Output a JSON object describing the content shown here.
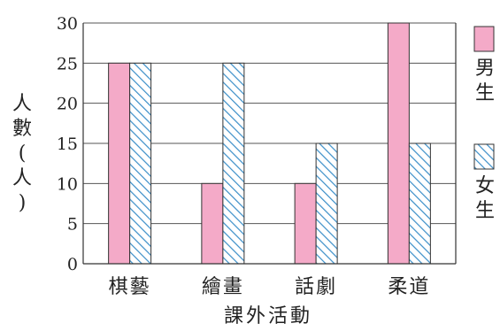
{
  "chart_data": {
    "type": "bar",
    "categories": [
      "棋藝",
      "繪畫",
      "話劇",
      "柔道"
    ],
    "series": [
      {
        "name": "男生",
        "values": [
          25,
          10,
          10,
          30
        ],
        "color": "#f4aac8",
        "pattern": "solid"
      },
      {
        "name": "女生",
        "values": [
          25,
          25,
          15,
          15
        ],
        "color": "#3a8ec8",
        "pattern": "diagonal-hatch"
      }
    ],
    "xlabel": "課外活動",
    "ylabel": "人數(人)",
    "ylim": [
      0,
      30
    ],
    "yticks": [
      0,
      5,
      10,
      15,
      20,
      25,
      30
    ],
    "grid": true,
    "legend_position": "right"
  }
}
